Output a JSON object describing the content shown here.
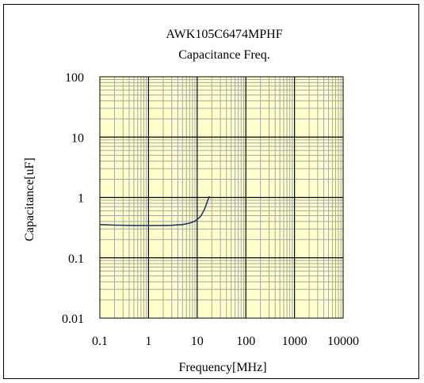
{
  "chart_data": {
    "type": "line",
    "title": "AWK105C6474MPHF",
    "subtitle": "Capacitance Freq.",
    "xlabel": "Frequency[MHz]",
    "ylabel": "Capacitance[uF]",
    "x_scale": "log",
    "y_scale": "log",
    "xlim": [
      0.1,
      10000
    ],
    "ylim": [
      0.01,
      100
    ],
    "x_ticks": [
      "0.1",
      "1",
      "10",
      "100",
      "1000",
      "10000"
    ],
    "y_ticks": [
      "100",
      "10",
      "1",
      "0.1",
      "0.01"
    ],
    "grid": true,
    "legend": "none",
    "plot_bg": "#ffffcc",
    "series": [
      {
        "color": "#1f3864",
        "x": [
          0.1,
          0.2,
          0.5,
          1,
          2,
          3,
          5,
          7,
          9,
          10,
          11,
          12,
          13,
          14,
          15,
          16,
          17,
          17.8
        ],
        "y": [
          0.355,
          0.348,
          0.343,
          0.342,
          0.343,
          0.345,
          0.355,
          0.375,
          0.405,
          0.43,
          0.46,
          0.5,
          0.56,
          0.63,
          0.72,
          0.83,
          0.95,
          1.05
        ]
      }
    ]
  }
}
